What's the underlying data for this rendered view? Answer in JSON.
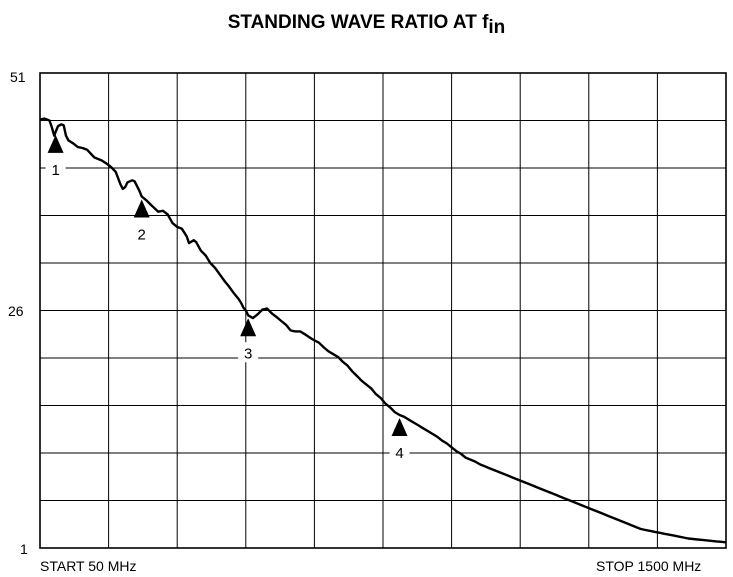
{
  "chart_data": {
    "type": "line",
    "title_main": "STANDING WAVE RATIO AT f",
    "title_sub": "in",
    "y_tick_labels": [
      "51",
      "26",
      "1"
    ],
    "x_start_label": "START  50 MHz",
    "x_stop_label": "STOP  1500 MHz",
    "xlim": [
      50,
      1500
    ],
    "ylim": [
      1,
      51
    ],
    "grid": true,
    "x_divisions": 10,
    "y_divisions": 10,
    "series": [
      {
        "x": [
          50,
          60,
          70,
          75,
          80,
          83,
          88,
          95,
          100,
          105,
          110,
          120,
          130,
          140,
          150,
          165,
          180,
          190,
          200,
          210,
          220,
          225,
          230,
          235,
          245,
          250,
          260,
          265,
          275,
          285,
          300,
          310,
          320,
          330,
          340,
          350,
          360,
          365,
          375,
          380,
          390,
          400,
          410,
          420,
          430,
          440,
          450,
          460,
          470,
          475,
          480,
          485,
          490,
          500,
          510,
          520,
          530,
          540,
          550,
          560,
          570,
          580,
          590,
          600,
          610,
          625,
          640,
          650,
          660,
          670,
          680,
          690,
          700,
          710,
          720,
          730,
          740,
          750,
          760,
          770,
          780,
          790,
          800,
          810,
          820,
          830,
          840,
          850,
          860,
          870,
          880,
          890,
          900,
          910,
          920,
          930,
          940,
          950,
          960,
          970,
          980,
          990,
          1000,
          1010,
          1020,
          1030,
          1040,
          1050,
          1060,
          1070,
          1080,
          1090,
          1100,
          1110,
          1120,
          1130,
          1140,
          1150,
          1160,
          1170,
          1180,
          1190,
          1200,
          1210,
          1220,
          1230,
          1240,
          1250,
          1260,
          1270,
          1280,
          1290,
          1300,
          1310,
          1320,
          1330,
          1340,
          1350,
          1360,
          1370,
          1380,
          1390,
          1400,
          1410,
          1420,
          1430,
          1440,
          1450,
          1460,
          1470,
          1480,
          1490,
          1500
        ],
        "y": [
          46.1,
          46.2,
          46.0,
          45.3,
          44.4,
          44.8,
          45.4,
          45.6,
          45.5,
          44.4,
          43.9,
          43.6,
          43.2,
          43.1,
          42.9,
          42.1,
          41.8,
          41.5,
          41.1,
          40.6,
          39.3,
          38.8,
          39.0,
          39.5,
          39.7,
          39.6,
          38.6,
          38.0,
          37.6,
          37.1,
          36.4,
          36.5,
          36.1,
          35.2,
          34.8,
          34.6,
          33.8,
          33.1,
          33.4,
          33.2,
          32.3,
          31.8,
          31.0,
          30.5,
          29.8,
          29.1,
          28.5,
          27.8,
          27.2,
          26.8,
          26.3,
          26.0,
          25.5,
          25.2,
          25.6,
          26.1,
          26.2,
          25.7,
          25.3,
          24.9,
          24.5,
          23.9,
          23.8,
          23.8,
          23.5,
          23.0,
          22.6,
          22.1,
          21.7,
          21.4,
          21.1,
          20.6,
          20.2,
          19.6,
          19.1,
          18.6,
          18.2,
          17.8,
          17.2,
          16.8,
          16.2,
          15.8,
          15.3,
          15.0,
          14.8,
          14.5,
          14.2,
          13.9,
          13.6,
          13.3,
          13.0,
          12.7,
          12.3,
          12.0,
          11.6,
          11.2,
          10.9,
          10.5,
          10.3,
          10.1,
          9.8,
          9.6,
          9.4,
          9.2,
          9.0,
          8.8,
          8.6,
          8.4,
          8.2,
          8.0,
          7.8,
          7.6,
          7.4,
          7.2,
          7.0,
          6.8,
          6.6,
          6.4,
          6.2,
          6.0,
          5.8,
          5.6,
          5.4,
          5.2,
          5.0,
          4.8,
          4.6,
          4.4,
          4.2,
          4.0,
          3.8,
          3.6,
          3.4,
          3.2,
          3.0,
          2.9,
          2.8,
          2.7,
          2.6,
          2.5,
          2.4,
          2.3,
          2.2,
          2.1,
          2.0,
          1.95,
          1.9,
          1.85,
          1.8,
          1.75,
          1.7,
          1.65,
          1.6
        ]
      }
    ],
    "markers": [
      {
        "label": "1",
        "x": 83,
        "y": 44.8
      },
      {
        "label": "2",
        "x": 265,
        "y": 38.0
      },
      {
        "label": "3",
        "x": 490,
        "y": 25.5
      },
      {
        "label": "4",
        "x": 810,
        "y": 15.0
      }
    ]
  }
}
